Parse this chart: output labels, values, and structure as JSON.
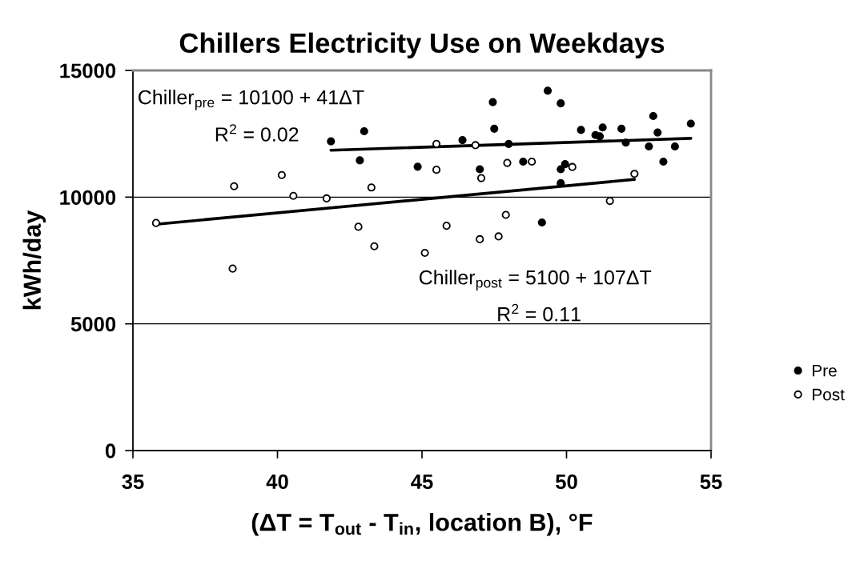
{
  "chart_data": {
    "type": "scatter",
    "title": "Chillers Electricity Use on Weekdays",
    "xlabel": "(ΔT = T$_{out}$ - T$_{in}$, location B), °F",
    "ylabel": "kWh/day",
    "xlim": [
      35,
      55
    ],
    "ylim": [
      0,
      15000
    ],
    "xticks": [
      35,
      40,
      45,
      50,
      55
    ],
    "yticks": [
      0,
      5000,
      10000,
      15000
    ],
    "grid": "y",
    "legend": "right",
    "annotations": [
      "Chiller$_{pre}$ = 10100 + 41ΔT",
      "R$^{2}$ = 0.02",
      "Chiller$_{post}$ = 5100 + 107ΔT",
      "R$^{2}$ = 0.11"
    ],
    "series": [
      {
        "name": "Pre",
        "color": "#000000",
        "marker": "circle",
        "x": [
          41.85,
          43.0,
          42.85,
          44.85,
          47.45,
          47.5,
          46.4,
          48.0,
          47.0,
          48.5,
          49.35,
          49.8,
          49.15,
          49.8,
          49.8,
          49.95,
          50.5,
          51.0,
          51.15,
          51.25,
          51.9,
          52.05,
          52.85,
          53.0,
          53.15,
          53.35,
          53.75,
          54.3
        ],
        "values": [
          12200,
          12600,
          11450,
          11200,
          13750,
          12700,
          12250,
          12100,
          11100,
          11400,
          14200,
          13700,
          9000,
          10550,
          11100,
          11300,
          12650,
          12450,
          12400,
          12750,
          12700,
          12150,
          12000,
          13200,
          12550,
          11400,
          12000,
          12900
        ]
      },
      {
        "name": "Post",
        "color": "#ffffff",
        "marker": "circle",
        "x": [
          35.8,
          38.5,
          38.45,
          40.15,
          40.55,
          41.7,
          42.8,
          43.25,
          43.35,
          45.1,
          45.5,
          45.5,
          46.85,
          47.05,
          47.95,
          48.8,
          50.2,
          52.35,
          51.5,
          47.9,
          45.85,
          47.65,
          47.0
        ],
        "values": [
          8980,
          10430,
          7180,
          10870,
          10050,
          9950,
          8830,
          10380,
          8060,
          7800,
          12100,
          11080,
          12050,
          10750,
          11350,
          11400,
          11190,
          10920,
          9850,
          9300,
          8870,
          8450,
          8340
        ]
      },
      {
        "type": "line",
        "color": "#000000",
        "marker": "none",
        "line_style": "solid",
        "x": [
          41.85,
          54.3
        ],
        "values": [
          11850,
          12320
        ]
      },
      {
        "type": "line",
        "color": "#000000",
        "marker": "none",
        "line_style": "solid",
        "x": [
          35.8,
          52.35
        ],
        "values": [
          8930,
          10700
        ]
      }
    ]
  }
}
